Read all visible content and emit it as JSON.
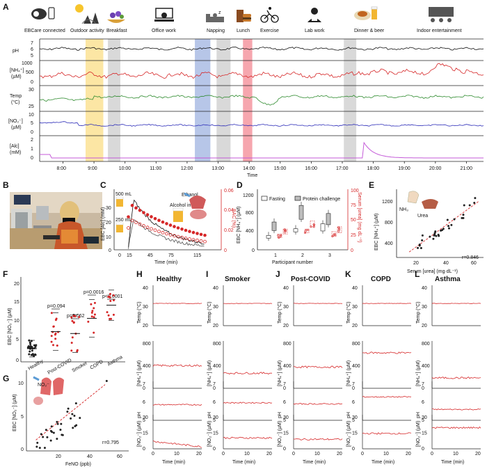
{
  "panel_labels": {
    "A": "A",
    "B": "B",
    "C": "C",
    "D": "D",
    "E": "E",
    "F": "F",
    "G": "G",
    "H": "H",
    "I": "I",
    "J": "J",
    "K": "K",
    "L": "L"
  },
  "panelA": {
    "activities": [
      "EBCare connected",
      "Outdoor activity",
      "Breakfast",
      "Office work",
      "Napping",
      "Lunch",
      "Exercise",
      "Lab work",
      "Dinner & beer",
      "Indoor entertainment"
    ],
    "row_labels": [
      "pH",
      "[NH₄⁺]",
      "(µM)",
      "Temp",
      "(°C)",
      "[NO₂⁻]",
      "(µM)",
      "[Alc]",
      "(mM)"
    ],
    "row_ticks": {
      "pH": [
        "7",
        "6",
        "5"
      ],
      "nh4": [
        "1000",
        "500",
        "0"
      ],
      "temp": [
        "30",
        "25"
      ],
      "no2": [
        "10",
        "5",
        "0"
      ],
      "alc": [
        "2",
        "1",
        "0"
      ]
    },
    "time_ticks": [
      "8:00",
      "9:00",
      "10:00",
      "11:00",
      "12:00",
      "13:00",
      "14:00",
      "15:00",
      "16:00",
      "17:00",
      "18:00",
      "19:00",
      "20:00",
      "21:00"
    ],
    "xlabel": "Time",
    "bands": [
      {
        "t0": 8.73,
        "t1": 9.3,
        "color": "#fce6a4"
      },
      {
        "t0": 9.45,
        "t1": 9.85,
        "color": "#d9d9d9"
      },
      {
        "t0": 12.25,
        "t1": 12.75,
        "color": "#b7c6e8"
      },
      {
        "t0": 12.95,
        "t1": 13.4,
        "color": "#d9d9d9"
      },
      {
        "t0": 13.8,
        "t1": 14.1,
        "color": "#f6a6ae"
      },
      {
        "t0": 17.05,
        "t1": 17.45,
        "color": "#d9d9d9"
      }
    ]
  },
  "panelC": {
    "xlabel": "Time (min)",
    "ylabel_left": "EBC [Alc] (mM)",
    "ylabel_right": "BAC (%)",
    "left_ticks": [
      "30",
      "20",
      "10",
      "0"
    ],
    "right_ticks": [
      "0.06",
      "0.04",
      "0.02",
      "0"
    ],
    "x_ticks": [
      "0",
      "15",
      "45",
      "75",
      "115"
    ],
    "annotations": [
      "500 mL",
      "250 mL",
      "Alcohol intake",
      "Ethanol"
    ]
  },
  "panelD": {
    "xlabel": "Participant number",
    "ylabel_left": "EBC [NH₄⁺] (µM)",
    "ylabel_right": "Serum [urea] (mg dL⁻¹)",
    "left_ticks": [
      "1200",
      "800",
      "400",
      "0"
    ],
    "right_ticks": [
      "100",
      "75",
      "50",
      "25",
      "0"
    ],
    "x_ticks": [
      "1",
      "2",
      "3"
    ],
    "legend": [
      "Fasting",
      "Protein challenge"
    ]
  },
  "panelE": {
    "xlabel": "Serum [urea] (mg·dL⁻¹)",
    "ylabel": "EBC [NH₄⁺] (µM)",
    "y_ticks": [
      "1200",
      "800",
      "400"
    ],
    "x_ticks": [
      "20",
      "40",
      "60"
    ],
    "r": "r=0.846",
    "annotations": [
      "NH₃",
      "Urea"
    ]
  },
  "panelF": {
    "ylabel": "EBC [NO₂⁻] (µM)",
    "y_ticks": [
      "20",
      "15",
      "10",
      "5",
      "0"
    ],
    "groups": [
      "Healthy",
      "Post-COVID",
      "Smoker",
      "COPD",
      "Asthma"
    ],
    "pvalues": [
      "p=0.094",
      "p=0.062",
      "p=0.0016",
      "p<0.0001"
    ]
  },
  "panelG": {
    "xlabel": "FeNO (ppb)",
    "ylabel": "EBC [NO₂⁻] (µM)",
    "y_ticks": [
      "10",
      "5",
      "0"
    ],
    "x_ticks": [
      "20",
      "40",
      "60"
    ],
    "r": "r=0.795",
    "annotation": "NO₂⁻"
  },
  "small_panels": {
    "titles": [
      "Healthy",
      "Smoker",
      "Post-COVID",
      "COPD",
      "Asthma"
    ],
    "xlabel": "Time (min)",
    "x_ticks": [
      "0",
      "10",
      "20"
    ],
    "row_labels": [
      "Temp (°C)",
      "[NH₄⁺] (µM)",
      "pH",
      "[NO₂⁻] (µM)"
    ],
    "temp_ticks": [
      "40",
      "30",
      "20"
    ],
    "nh4_ticks": [
      "800",
      "400",
      "0"
    ],
    "ph_ticks": [
      "7",
      "6",
      "5"
    ],
    "no2_ticks": [
      "30",
      "15",
      "0"
    ],
    "temp_ticks_first": [
      "40",
      "30",
      "20"
    ]
  },
  "colors": {
    "pH": "#111111",
    "nh4": "#d62728",
    "temp": "#2e8b2e",
    "no2": "#2c2cb8",
    "alc": "#c45ad8",
    "red": "#d62728"
  }
}
